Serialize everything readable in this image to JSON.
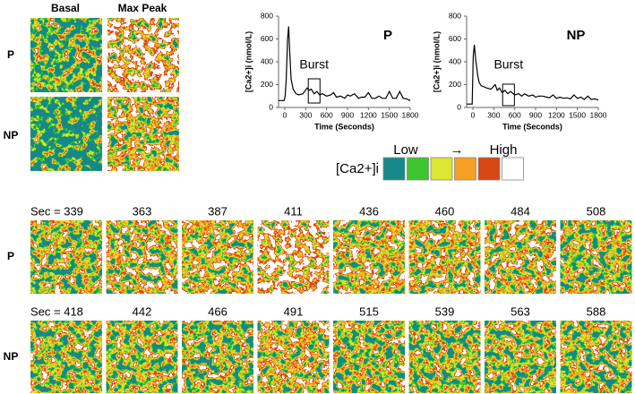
{
  "figure": {
    "top_columns": [
      "Basal",
      "Max Peak"
    ],
    "top_rows": [
      "P",
      "NP"
    ],
    "legend": {
      "label": "[Ca2+]i",
      "low": "Low",
      "arrow": "→",
      "high": "High",
      "colors": [
        "#17898a",
        "#3fc52e",
        "#dde630",
        "#f6a023",
        "#d64712",
        "#ffffff"
      ]
    },
    "sequence": [
      {
        "label": "P",
        "frames": [
          "Sec = 339",
          "363",
          "387",
          "411",
          "436",
          "460",
          "484",
          "508"
        ]
      },
      {
        "label": "NP",
        "frames": [
          "Sec = 418",
          "442",
          "466",
          "491",
          "515",
          "539",
          "563",
          "588"
        ]
      }
    ]
  },
  "chart_data": [
    {
      "type": "line",
      "title": "P",
      "xlabel": "Time (Seconds)",
      "ylabel": "[Ca2+]i (nmol/L)",
      "xlim": [
        -90,
        1800
      ],
      "xticks": [
        0,
        300,
        600,
        900,
        1200,
        1500,
        1800
      ],
      "ylim": [
        0,
        800
      ],
      "yticks": [
        0,
        200,
        400,
        600,
        800
      ],
      "color": "#000000",
      "x": [
        -90,
        -10,
        5,
        20,
        40,
        55,
        70,
        90,
        120,
        160,
        200,
        260,
        320,
        350,
        380,
        420,
        460,
        500,
        540,
        600,
        660,
        700,
        740,
        800,
        860,
        900,
        940,
        1000,
        1060,
        1100,
        1150,
        1200,
        1250,
        1300,
        1350,
        1400,
        1450,
        1500,
        1550,
        1600,
        1650,
        1700,
        1750,
        1800
      ],
      "values": [
        60,
        60,
        100,
        250,
        600,
        710,
        500,
        250,
        160,
        120,
        110,
        120,
        170,
        150,
        160,
        120,
        140,
        110,
        120,
        100,
        110,
        130,
        90,
        100,
        80,
        110,
        100,
        120,
        80,
        90,
        90,
        130,
        80,
        80,
        100,
        80,
        80,
        140,
        80,
        80,
        140,
        80,
        75,
        60
      ],
      "annotation": {
        "text": "Burst",
        "x": [
          337,
          505
        ],
        "y": [
          39,
          251
        ]
      }
    },
    {
      "type": "line",
      "title": "NP",
      "xlabel": "Time (Seconds)",
      "ylabel": "[Ca2+]i (nmol/L)",
      "xlim": [
        -90,
        1800
      ],
      "xticks": [
        0,
        300,
        600,
        900,
        1200,
        1500,
        1800
      ],
      "ylim": [
        0,
        800
      ],
      "yticks": [
        0,
        200,
        400,
        600,
        800
      ],
      "color": "#000000",
      "x": [
        -90,
        -10,
        5,
        20,
        40,
        55,
        70,
        90,
        120,
        160,
        200,
        260,
        320,
        350,
        380,
        420,
        460,
        500,
        540,
        600,
        660,
        700,
        740,
        800,
        860,
        900,
        940,
        1000,
        1060,
        1100,
        1150,
        1200,
        1250,
        1300,
        1350,
        1400,
        1450,
        1500,
        1550,
        1600,
        1650,
        1700,
        1750,
        1800
      ],
      "values": [
        30,
        30,
        450,
        550,
        420,
        350,
        280,
        220,
        190,
        180,
        170,
        160,
        200,
        150,
        170,
        130,
        150,
        120,
        140,
        110,
        120,
        100,
        120,
        100,
        110,
        90,
        100,
        100,
        90,
        85,
        110,
        80,
        90,
        80,
        85,
        75,
        110,
        80,
        90,
        70,
        100,
        70,
        75,
        65
      ],
      "annotation": {
        "text": "Burst",
        "x": [
          427,
          596
        ],
        "y": [
          16,
          204
        ]
      }
    }
  ]
}
